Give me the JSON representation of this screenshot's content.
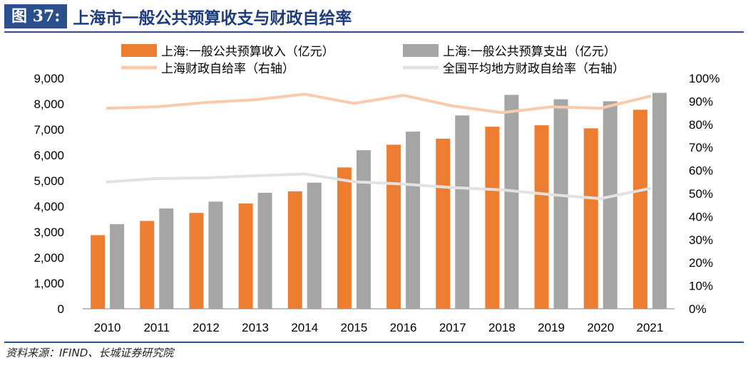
{
  "header": {
    "figure_label": "图 37:",
    "title": "上海市一般公共预算收支与财政自给率"
  },
  "source": "资料来源：IFIND、长城证券研究院",
  "chart_data": {
    "type": "bar",
    "categories": [
      "2010",
      "2011",
      "2012",
      "2013",
      "2014",
      "2015",
      "2016",
      "2017",
      "2018",
      "2019",
      "2020",
      "2021"
    ],
    "series": [
      {
        "name": "上海:一般公共预算收入（亿元）",
        "kind": "bar",
        "axis": "left",
        "color": "#ed7d31",
        "values": [
          2874,
          3430,
          3744,
          4110,
          4586,
          5519,
          6406,
          6642,
          7108,
          7165,
          7046,
          7771
        ]
      },
      {
        "name": "上海:一般公共预算支出（亿元）",
        "kind": "bar",
        "axis": "left",
        "color": "#a5a5a5",
        "values": [
          3303,
          3915,
          4184,
          4529,
          4924,
          6191,
          6919,
          7548,
          8351,
          8179,
          8102,
          8431
        ]
      },
      {
        "name": "上海财政自给率（右轴）",
        "kind": "line",
        "axis": "right",
        "color": "#f8cbad",
        "values": [
          87.0,
          87.6,
          89.5,
          90.7,
          93.1,
          89.1,
          92.6,
          88.0,
          85.1,
          87.6,
          87.0,
          92.2
        ]
      },
      {
        "name": "全国平均地方财政自给率（右轴）",
        "kind": "line",
        "axis": "right",
        "color": "#e2e2e2",
        "values": [
          55.0,
          56.5,
          56.8,
          57.7,
          58.5,
          55.1,
          54.1,
          52.6,
          51.6,
          49.5,
          47.8,
          52.2
        ]
      }
    ],
    "y_left": {
      "min": 0,
      "max": 9000,
      "ticks": [
        0,
        1000,
        2000,
        3000,
        4000,
        5000,
        6000,
        7000,
        8000,
        9000
      ],
      "tick_labels": [
        "0",
        "1,000",
        "2,000",
        "3,000",
        "4,000",
        "5,000",
        "6,000",
        "7,000",
        "8,000",
        "9,000"
      ]
    },
    "y_right": {
      "min": 0,
      "max": 100,
      "ticks": [
        0,
        10,
        20,
        30,
        40,
        50,
        60,
        70,
        80,
        90,
        100
      ],
      "tick_labels": [
        "0%",
        "10%",
        "20%",
        "30%",
        "40%",
        "50%",
        "60%",
        "70%",
        "80%",
        "90%",
        "100%"
      ]
    },
    "legend_position": "top"
  }
}
